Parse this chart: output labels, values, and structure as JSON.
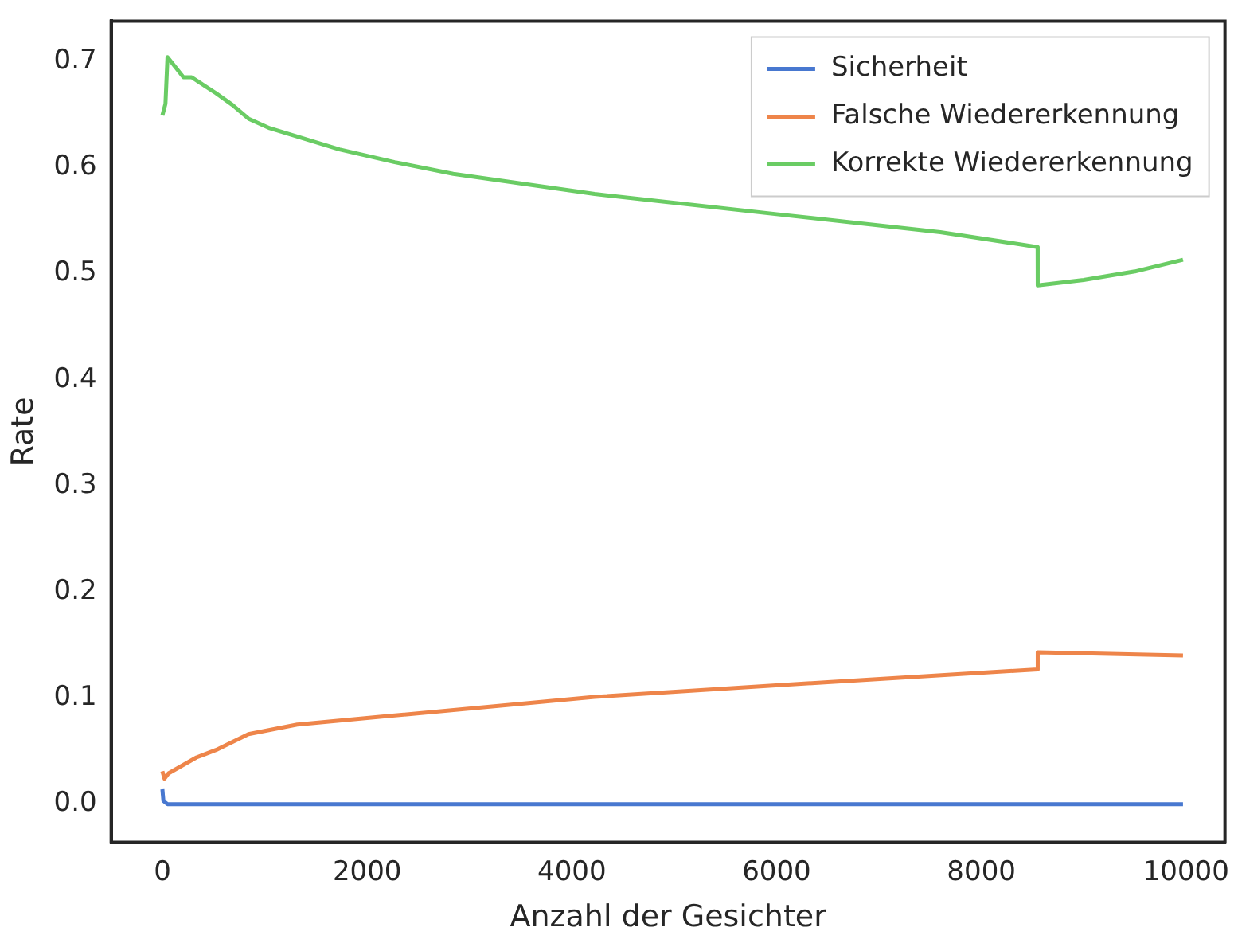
{
  "chart_data": {
    "type": "line",
    "xlabel": "Anzahl der Gesichter",
    "ylabel": "Rate",
    "xlim": [
      -500,
      10380
    ],
    "ylim": [
      -0.036,
      0.738
    ],
    "xticks": [
      0,
      2000,
      4000,
      6000,
      8000,
      10000
    ],
    "yticks": [
      {
        "value": 0,
        "label": "0.0"
      },
      0.1,
      0.2,
      0.3,
      0.4,
      0.5,
      0.6,
      0.7
    ],
    "grid": false,
    "legend": "top right",
    "marker": "none",
    "line_style": "solid",
    "series": [
      {
        "name": "Sicherheit",
        "color": "#4878d0",
        "x": [
          0,
          10,
          50,
          1000,
          5000,
          9970
        ],
        "values": [
          0.014,
          0.003,
          0.0,
          0.0,
          0.0,
          0.0
        ]
      },
      {
        "name": "Falsche Wiedererkennung",
        "color": "#ee854a",
        "x": [
          0,
          20,
          60,
          333,
          524,
          841,
          1317,
          2206,
          4222,
          6500,
          8550,
          8551,
          9970
        ],
        "values": [
          0.031,
          0.024,
          0.029,
          0.044,
          0.051,
          0.066,
          0.075,
          0.083,
          0.101,
          0.115,
          0.127,
          0.143,
          0.14
        ]
      },
      {
        "name": "Korrekte Wiedererkennung",
        "color": "#6acc64",
        "x": [
          0,
          30,
          50,
          206,
          286,
          524,
          683,
          841,
          1048,
          1730,
          2270,
          2841,
          4222,
          6000,
          7600,
          8550,
          8551,
          9000,
          9500,
          9970
        ],
        "values": [
          0.649,
          0.66,
          0.704,
          0.685,
          0.685,
          0.67,
          0.659,
          0.646,
          0.637,
          0.617,
          0.605,
          0.594,
          0.575,
          0.556,
          0.539,
          0.525,
          0.489,
          0.494,
          0.502,
          0.513
        ]
      }
    ]
  }
}
